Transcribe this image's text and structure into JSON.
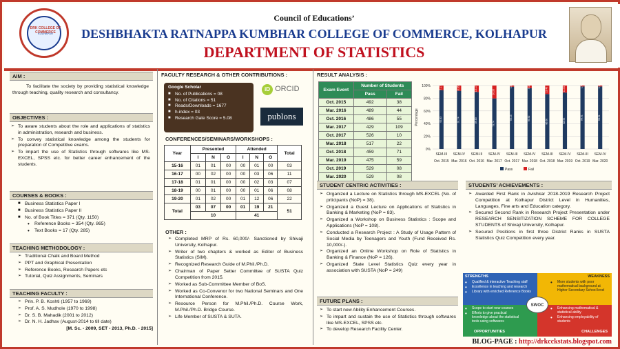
{
  "header": {
    "council": "Council of Educations’",
    "college": "DESHBHAKTA RATNAPPA KUMBHAR COLLEGE OF COMMERCE, KOLHAPUR",
    "dept": "DEPARTMENT OF STATISTICS",
    "logo_text": "DRK COLLEGE OF COMMERCE",
    "logo_sub": "KOLHAPUR"
  },
  "aim": {
    "title": "AIM :",
    "text": "To facilitate the society by providing statistical knowledge through teaching, quality research and consultancy."
  },
  "objectives": {
    "title": "OBJECTIVES :",
    "items": [
      "To aware students about the role and applications of statistics in administration, research and business.",
      "To convey statistical knowledge among the students for preparation of Competitive exams.",
      "To impart the use of Statistics through softwares like MS-EXCEL, SPSS etc. for better career enhancement of the students."
    ]
  },
  "courses": {
    "title": "COURSES & BOOKS :",
    "items": [
      "Business Statistics Paper I",
      "Business Statistics Paper II",
      "No. of Book Titles = 371 (Qty. 1150)"
    ],
    "sub": [
      "Reference Books = 354 (Qty. 865)",
      "Text Books = 17 (Qty. 285)"
    ]
  },
  "teaching_method": {
    "title": "TEACHING METHODOLOGY :",
    "items": [
      "Traditional Chalk and Board Method",
      "PPT and Graphical Presentation",
      "Reference Books, Research Papers etc",
      "Tutorial, Quiz Assignments, Seminars"
    ]
  },
  "faculty": {
    "title": "TEACHING FACULTY :",
    "items": [
      "Prin. P. B. Koshti (1957 to 1969)",
      "Prof. A. S. Mudhole (1970 to 1998)",
      "Dr. S. B. Mahadik (2001 to 2012)",
      "Dr. N. H. Jadhav (August-2014 to till date)"
    ],
    "note": "[M. Sc. - 2009, SET - 2013, Ph.D. - 2015]"
  },
  "research": {
    "title": "FACULTY RESEARCH & OTHER CONTRIBUTIONS :",
    "scholar_title": "Google Scholar",
    "scholar": [
      "No. of Publications = 08",
      "No. of Citations = 51",
      "Reads/Downloads = 1677",
      "h-index = 03",
      "Research Gate Score = 5.08"
    ],
    "orcid": "ORCID",
    "publons": "publons"
  },
  "conf": {
    "title": "CONFERENCES/SEMINARS/WORKSHOPS :",
    "h_year": "Year",
    "h_presented": "Presented",
    "h_attended": "Attended",
    "h_total": "Total",
    "sub": [
      "I",
      "N",
      "O",
      "I",
      "N",
      "O"
    ],
    "rows": [
      [
        "15-16",
        "01",
        "01",
        "00",
        "00",
        "01",
        "00",
        "03"
      ],
      [
        "16-17",
        "00",
        "02",
        "00",
        "00",
        "03",
        "06",
        "11"
      ],
      [
        "17-18",
        "01",
        "01",
        "00",
        "00",
        "02",
        "03",
        "07"
      ],
      [
        "18-19",
        "00",
        "01",
        "00",
        "00",
        "01",
        "06",
        "08"
      ],
      [
        "19-20",
        "01",
        "02",
        "00",
        "01",
        "12",
        "06",
        "22"
      ]
    ],
    "total_label": "Total",
    "totals": [
      "03",
      "07",
      "00",
      "01",
      "19",
      "21"
    ],
    "sub_totals": [
      "10",
      "41"
    ],
    "grand": "51"
  },
  "other": {
    "title": "OTHER :",
    "items": [
      "Completed MRP of Rs. 60,000/- Sanctioned by Shivaji University, Kolhapur.",
      "Writer of two chapters & worked as Editor of Business Statistics (SIM).",
      "Recognized Research Guide of M.Phil./Ph.D.",
      "Chairman of Paper Setter Committee of SUSTA Quiz Competition from 2015.",
      "Worked as Sub-Committee Member of BoS.",
      "Worked as Co-Convenor for two National Seminars and One International Conference.",
      "Resource Person for M.Phil./Ph.D. Course Work, M.Phil./Ph.D. Bridge Course.",
      "Life Member of SUSTA & SUTA."
    ]
  },
  "results": {
    "title": "RESULT ANALYSIS :",
    "h_exam": "Exam Event",
    "h_num": "Number of Students",
    "h_pass": "Pass",
    "h_fail": "Fail",
    "rows": [
      [
        "Oct. 2015",
        "492",
        "38"
      ],
      [
        "Mar. 2016",
        "489",
        "44"
      ],
      [
        "Oct. 2016",
        "486",
        "55"
      ],
      [
        "Mar. 2017",
        "429",
        "109"
      ],
      [
        "Oct. 2017",
        "526",
        "10"
      ],
      [
        "Mar. 2018",
        "517",
        "22"
      ],
      [
        "Oct. 2018",
        "459",
        "71"
      ],
      [
        "Mar. 2019",
        "475",
        "59"
      ],
      [
        "Oct. 2019",
        "529",
        "08"
      ],
      [
        "Mar. 2020",
        "529",
        "08"
      ]
    ]
  },
  "chart_data": {
    "type": "bar",
    "stacked": true,
    "ylabel": "Percentage",
    "ylim": [
      0,
      100
    ],
    "yticks": [
      "0%",
      "20%",
      "40%",
      "60%",
      "80%",
      "100%"
    ],
    "categories": [
      "SEM-III Oct. 2015",
      "SEM-IV Mar. 2016",
      "SEM-III Oct. 2016",
      "SEM-IV Mar. 2017",
      "SEM-III Oct. 2017",
      "SEM-IV Mar. 2018",
      "SEM-III Oct. 2018",
      "SEM-IV Mar. 2019",
      "SEM-III Oct. 2019",
      "SEM-IV Mar. 2020"
    ],
    "cat_top": [
      "SEM-III",
      "SEM-IV",
      "SEM-III",
      "SEM-IV",
      "SEM-III",
      "SEM-IV",
      "SEM-III",
      "SEM-IV",
      "SEM-III",
      "SEM-IV"
    ],
    "cat_bot": [
      "Oct. 2015",
      "Mar. 2016",
      "Oct. 2016",
      "Mar. 2017",
      "Oct. 2017",
      "Mar. 2018",
      "Oct. 2018",
      "Mar. 2019",
      "Oct. 2019",
      "Mar. 2020"
    ],
    "series": [
      {
        "name": "Pass",
        "color": "#1f3a60",
        "values": [
          92.83,
          91.74,
          89.83,
          79.74,
          98.13,
          95.92,
          86.6,
          88.95,
          98.51,
          98.51
        ]
      },
      {
        "name": "Fail",
        "color": "#d62020",
        "values": [
          7.17,
          8.26,
          10.17,
          20.26,
          1.87,
          4.08,
          13.4,
          11.05,
          1.49,
          1.49
        ]
      }
    ],
    "legend": "bottom"
  },
  "student": {
    "title": "STUDENT CENTRIC ACTIVITIES :",
    "items": [
      "Organized a Lecture on Statistics through MS-EXCEL (No. of prticipants (NoP) = 38).",
      "Organized a Guest Lecture on Applications of Statistics in Banking & Marketing (NoP = 83).",
      "Organized a Workshop on Business Statistics : Scope and Applications (NoP = 108).",
      "Conducted a Research Project : A Study of Usage Pattern of Social Media by Teenagers and Youth (Fund Received Rs. 10,000/-).",
      "Organized an Online Workshop on Role of Statistics in Banking & Finance (NoP = 126).",
      "Organized State Level Statistics Quiz every year in association with SUSTA (NoP = 249)"
    ]
  },
  "future": {
    "title": "FUTURE PLANS :",
    "items": [
      "To start new Ability Enhancement Courses.",
      "To impart and sustain the use of Statistics through softwares like MS-EXCEL, SPSS etc.",
      "To develop Research Facility Center."
    ]
  },
  "achieve": {
    "title": "STUDENTS’ ACHIEVEMENTS :",
    "items": [
      "Awarded First Rank in Avishkar 2018-2019 Research Project Competition at Kolhapur District Level in Humanities, Languages, Fine arts and Education category.",
      "Secured Second Rank in Research Project Presentation under RESEARCH SENSITIZATION SCHEME FOR COLLEGE STUDENTS of Shivaji University, Kolhapur.",
      "Secured Positions in first three District Ranks in SUSTA Statistics Quiz Competition every year."
    ]
  },
  "swot": {
    "center": "SWOC",
    "s_title": "STRENGTHS",
    "s": [
      "Qualified & interactive Teaching staff",
      "Excellence in teaching and research",
      "Library with enriched Reference Books"
    ],
    "w_title": "WEAKNESS",
    "w": [
      "More students with poor mathematical background at Higher Secondary School level"
    ],
    "o_title": "OPPORTUNITIES",
    "o": [
      "Scope to start new courses",
      "Efforts to give practical knowledge about the statistical tools using softwares"
    ],
    "c_title": "CHALLENGES",
    "c": [
      "Enhancing mathematical & statistical ability",
      "Enhancing employability of students"
    ]
  },
  "blog": {
    "label": "BLOG-PAGE :",
    "url": "http://drkcckstats.blogspot.com"
  }
}
